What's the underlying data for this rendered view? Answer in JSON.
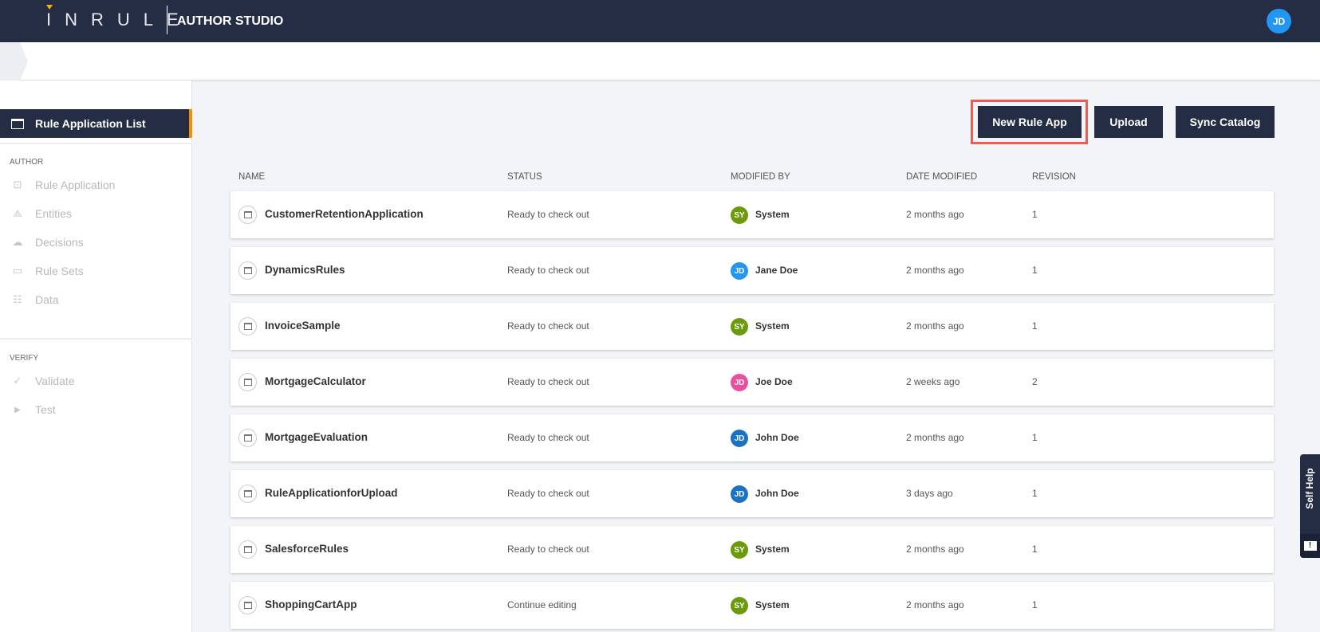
{
  "header": {
    "logo": "INRULE",
    "app_title": "AUTHOR STUDIO",
    "user_initials": "JD",
    "user_color": "#2196f3"
  },
  "sidebar": {
    "active": {
      "label": "Rule Application List",
      "icon": "rule-app-list-icon"
    },
    "author_title": "AUTHOR",
    "author_items": [
      {
        "label": "Rule Application",
        "icon": "rule-application-icon"
      },
      {
        "label": "Entities",
        "icon": "entities-icon"
      },
      {
        "label": "Decisions",
        "icon": "decisions-icon"
      },
      {
        "label": "Rule Sets",
        "icon": "rule-sets-icon"
      },
      {
        "label": "Data",
        "icon": "data-icon"
      }
    ],
    "verify_title": "VERIFY",
    "verify_items": [
      {
        "label": "Validate",
        "icon": "check-icon"
      },
      {
        "label": "Test",
        "icon": "play-icon"
      }
    ]
  },
  "toolbar": {
    "new_rule_app": "New Rule App",
    "upload": "Upload",
    "sync_catalog": "Sync Catalog"
  },
  "table": {
    "headers": [
      "NAME",
      "STATUS",
      "MODIFIED BY",
      "DATE MODIFIED",
      "REVISION"
    ],
    "rows": [
      {
        "name": "CustomerRetentionApplication",
        "status": "Ready to check out",
        "initials": "SY",
        "by": "System",
        "color": "#6b9a0b",
        "date": "2 months ago",
        "rev": "1"
      },
      {
        "name": "DynamicsRules",
        "status": "Ready to check out",
        "initials": "JD",
        "by": "Jane Doe",
        "color": "#2196f3",
        "date": "2 months ago",
        "rev": "1"
      },
      {
        "name": "InvoiceSample",
        "status": "Ready to check out",
        "initials": "SY",
        "by": "System",
        "color": "#6b9a0b",
        "date": "2 months ago",
        "rev": "1"
      },
      {
        "name": "MortgageCalculator",
        "status": "Ready to check out",
        "initials": "JD",
        "by": "Joe Doe",
        "color": "#ea4f9f",
        "date": "2 weeks ago",
        "rev": "2"
      },
      {
        "name": "MortgageEvaluation",
        "status": "Ready to check out",
        "initials": "JD",
        "by": "John Doe",
        "color": "#1a72c4",
        "date": "2 months ago",
        "rev": "1"
      },
      {
        "name": "RuleApplicationforUpload",
        "status": "Ready to check out",
        "initials": "JD",
        "by": "John Doe",
        "color": "#1a72c4",
        "date": "3 days ago",
        "rev": "1"
      },
      {
        "name": "SalesforceRules",
        "status": "Ready to check out",
        "initials": "SY",
        "by": "System",
        "color": "#6b9a0b",
        "date": "2 months ago",
        "rev": "1"
      },
      {
        "name": "ShoppingCartApp",
        "status": "Continue editing",
        "initials": "SY",
        "by": "System",
        "color": "#6b9a0b",
        "date": "2 months ago",
        "rev": "1"
      }
    ]
  },
  "self_help": {
    "label": "Self Help",
    "icon": "feedback-icon"
  }
}
